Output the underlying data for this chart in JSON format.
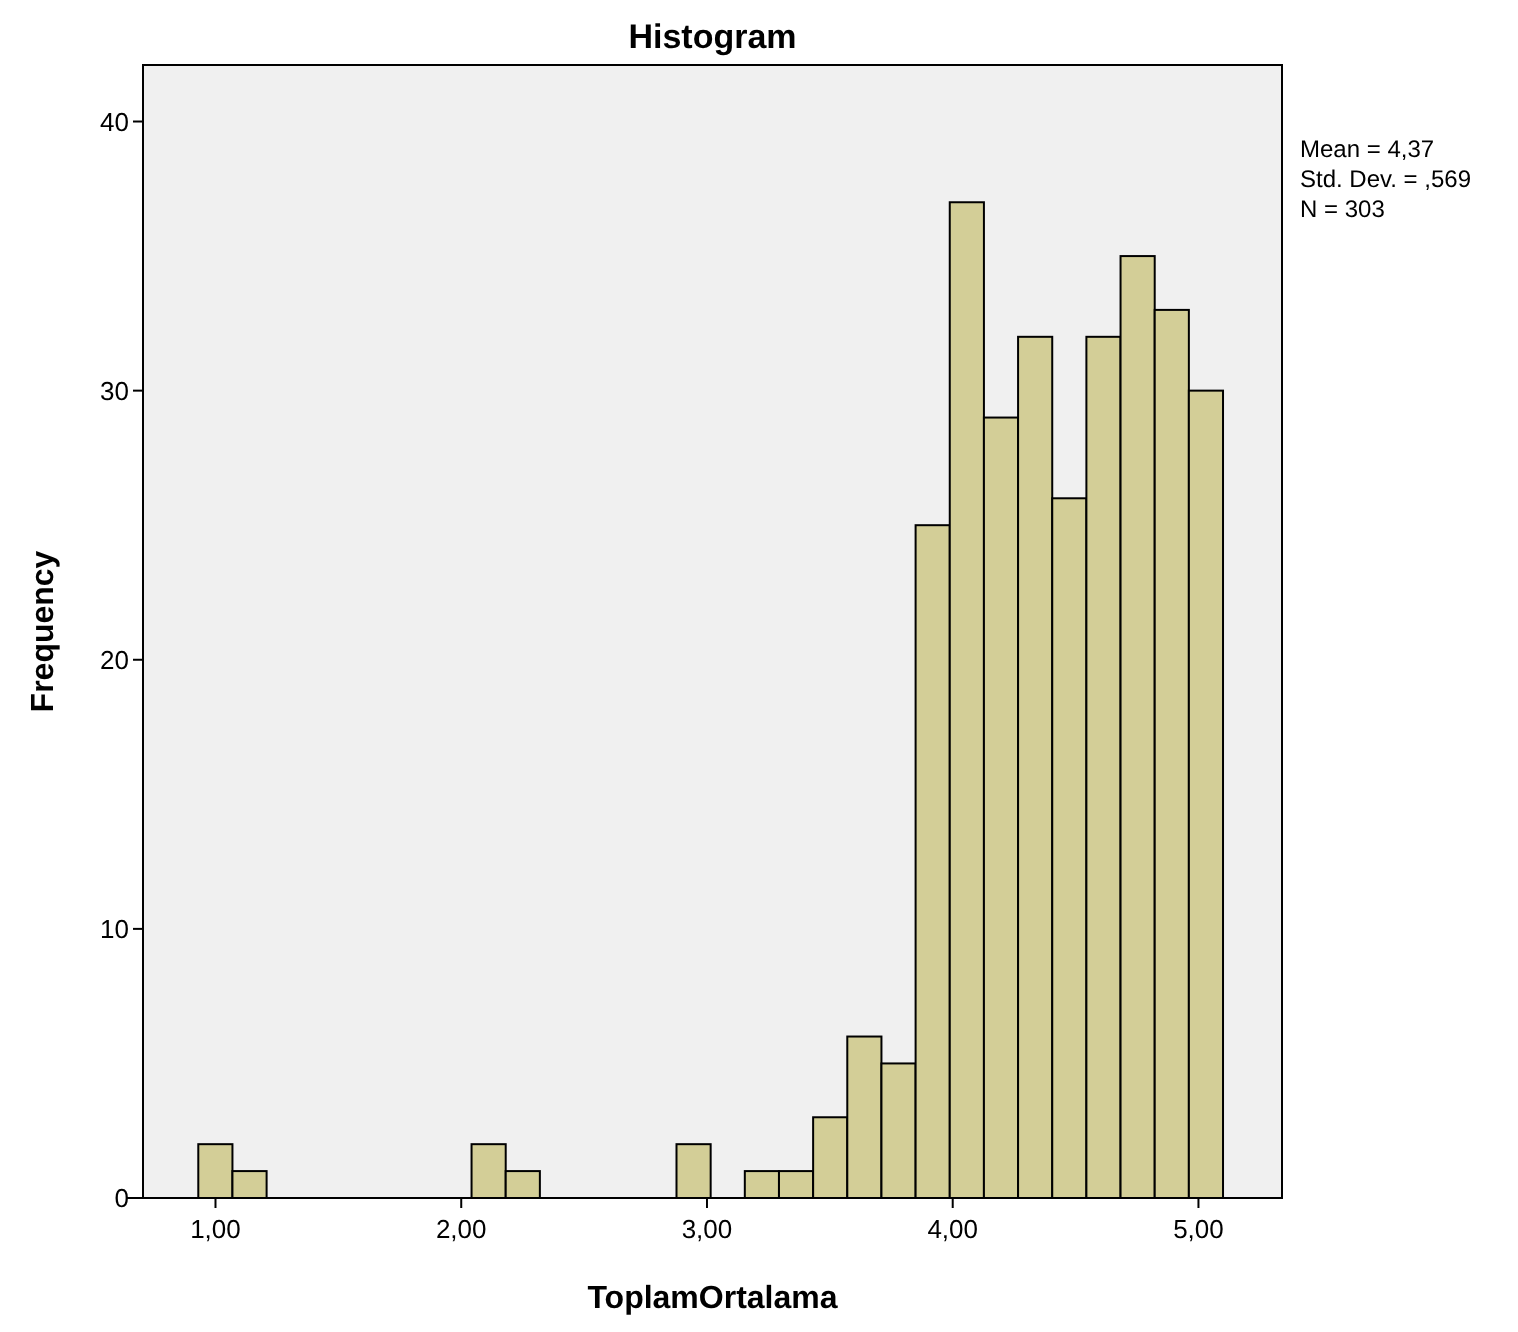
{
  "chart_data": {
    "type": "histogram",
    "title": "Histogram",
    "xlabel": "ToplamOrtalama",
    "ylabel": "Frequency",
    "bins": [
      0.93,
      1.069,
      1.208,
      1.347,
      1.486,
      1.625,
      1.764,
      1.903,
      2.042,
      2.181,
      2.32,
      2.459,
      2.598,
      2.737,
      2.876,
      3.015,
      3.154,
      3.293,
      3.432,
      3.571,
      3.71,
      3.849,
      3.988,
      4.127,
      4.266,
      4.405,
      4.544,
      4.683,
      4.822,
      4.961,
      5.1
    ],
    "values": [
      2,
      1,
      0,
      0,
      0,
      0,
      0,
      0,
      2,
      1,
      0,
      0,
      0,
      0,
      2,
      0,
      1,
      1,
      3,
      6,
      5,
      25,
      37,
      29,
      32,
      26,
      32,
      35,
      33,
      30
    ],
    "color": "#d3ce97",
    "xlim": [
      0.705,
      5.34
    ],
    "ylim": [
      0,
      42.1
    ],
    "xticks": [
      {
        "value": 1,
        "label": "1,00"
      },
      {
        "value": 2,
        "label": "2,00"
      },
      {
        "value": 3,
        "label": "3,00"
      },
      {
        "value": 4,
        "label": "4,00"
      },
      {
        "value": 5,
        "label": "5,00"
      }
    ],
    "yticks": [
      0,
      10,
      20,
      30,
      40
    ],
    "annotations": [
      "Mean = 4,37",
      "Std. Dev. = ,569",
      "N = 303"
    ]
  }
}
